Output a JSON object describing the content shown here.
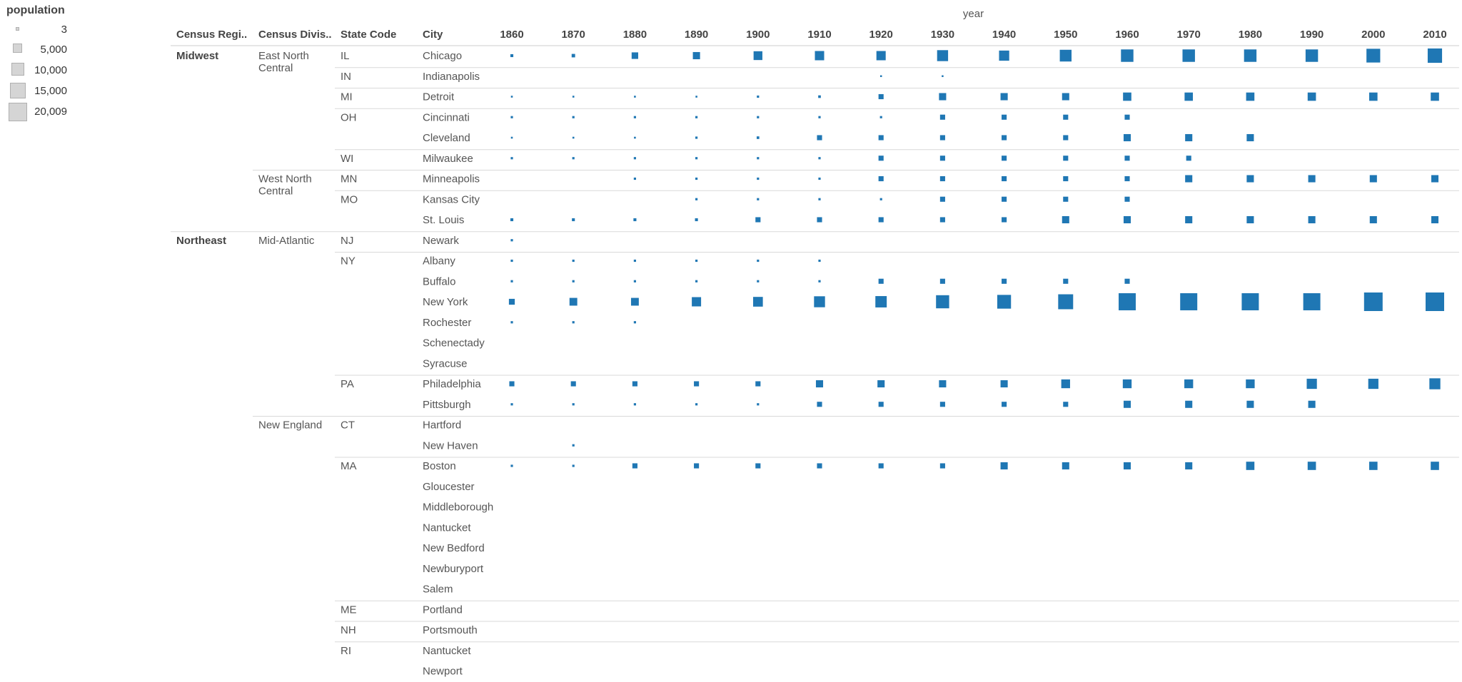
{
  "legend": {
    "title": "population",
    "items": [
      {
        "label": "3",
        "value": 3
      },
      {
        "label": "5,000",
        "value": 5000
      },
      {
        "label": "10,000",
        "value": 10000
      },
      {
        "label": "15,000",
        "value": 15000
      },
      {
        "label": "20,009",
        "value": 20009
      }
    ]
  },
  "chart_data": {
    "type": "table",
    "mark": "square",
    "size_encoding": "population",
    "column_group_title": "year",
    "row_headers": [
      "Census Regi..",
      "Census Divis..",
      "State Code",
      "City"
    ],
    "years": [
      "1860",
      "1870",
      "1880",
      "1890",
      "1900",
      "1910",
      "1920",
      "1930",
      "1940",
      "1950",
      "1960",
      "1970",
      "1980",
      "1990",
      "2000",
      "2010"
    ],
    "mark_color": "#1f77b4",
    "rows": [
      {
        "region": "Midwest",
        "division": "East North Central",
        "state": "IL",
        "city": "Chicago",
        "values": [
          500,
          700,
          2500,
          3000,
          4500,
          5000,
          5000,
          7000,
          6000,
          8000,
          9000,
          9000,
          9000,
          9000,
          11000,
          12000
        ]
      },
      {
        "region": "",
        "division": "",
        "state": "IN",
        "city": "Indianapolis",
        "values": [
          null,
          null,
          null,
          null,
          null,
          null,
          100,
          100,
          null,
          null,
          null,
          null,
          null,
          null,
          null,
          null
        ]
      },
      {
        "region": "",
        "division": "",
        "state": "MI",
        "city": "Detroit",
        "values": [
          200,
          200,
          200,
          200,
          300,
          400,
          1500,
          3000,
          3000,
          3000,
          4000,
          4000,
          4000,
          4000,
          4000,
          4000
        ]
      },
      {
        "region": "",
        "division": "",
        "state": "OH",
        "city": "Cincinnati",
        "values": [
          300,
          300,
          300,
          300,
          300,
          300,
          300,
          1500,
          1500,
          1500,
          1500,
          null,
          null,
          null,
          null,
          null
        ]
      },
      {
        "region": "",
        "division": "",
        "state": "",
        "city": "Cleveland",
        "values": [
          200,
          200,
          200,
          300,
          400,
          1500,
          1500,
          1500,
          1500,
          1500,
          3000,
          3000,
          3000,
          null,
          null,
          null
        ]
      },
      {
        "region": "",
        "division": "",
        "state": "WI",
        "city": "Milwaukee",
        "values": [
          300,
          300,
          300,
          300,
          300,
          300,
          1500,
          1500,
          1500,
          1500,
          1500,
          1500,
          null,
          null,
          null,
          null
        ]
      },
      {
        "region": "",
        "division": "West North Central",
        "state": "MN",
        "city": "Minneapolis",
        "values": [
          null,
          null,
          300,
          300,
          300,
          300,
          1500,
          1500,
          1500,
          1500,
          1500,
          3000,
          3000,
          3000,
          3000,
          3000
        ]
      },
      {
        "region": "",
        "division": "",
        "state": "MO",
        "city": "Kansas City",
        "values": [
          null,
          null,
          null,
          300,
          300,
          300,
          300,
          1500,
          1500,
          1500,
          1500,
          null,
          null,
          null,
          null,
          null
        ]
      },
      {
        "region": "",
        "division": "",
        "state": "",
        "city": "St. Louis",
        "values": [
          500,
          500,
          500,
          500,
          1500,
          1500,
          1500,
          1500,
          1500,
          3000,
          3000,
          3000,
          3000,
          3000,
          3000,
          3000
        ]
      },
      {
        "region": "Northeast",
        "division": "Mid-Atlantic",
        "state": "NJ",
        "city": "Newark",
        "values": [
          300,
          null,
          null,
          null,
          null,
          null,
          null,
          null,
          null,
          null,
          null,
          null,
          null,
          null,
          null,
          null
        ]
      },
      {
        "region": "",
        "division": "",
        "state": "NY",
        "city": "Albany",
        "values": [
          300,
          300,
          300,
          300,
          300,
          300,
          null,
          null,
          null,
          null,
          null,
          null,
          null,
          null,
          null,
          null
        ]
      },
      {
        "region": "",
        "division": "",
        "state": "",
        "city": "Buffalo",
        "values": [
          300,
          300,
          300,
          300,
          300,
          300,
          1500,
          1500,
          1500,
          1500,
          1500,
          null,
          null,
          null,
          null,
          null
        ]
      },
      {
        "region": "",
        "division": "",
        "state": "",
        "city": "New York",
        "values": [
          2000,
          3500,
          3500,
          5000,
          5500,
          7000,
          7500,
          10000,
          11000,
          13000,
          17000,
          17000,
          17000,
          17000,
          20009,
          20009
        ]
      },
      {
        "region": "",
        "division": "",
        "state": "",
        "city": "Rochester",
        "values": [
          300,
          300,
          300,
          null,
          null,
          null,
          null,
          null,
          null,
          null,
          null,
          null,
          null,
          null,
          null,
          null
        ]
      },
      {
        "region": "",
        "division": "",
        "state": "",
        "city": "Schenectady",
        "values": [
          null,
          null,
          null,
          null,
          null,
          null,
          null,
          null,
          null,
          null,
          null,
          null,
          null,
          null,
          null,
          null
        ]
      },
      {
        "region": "",
        "division": "",
        "state": "",
        "city": "Syracuse",
        "values": [
          null,
          null,
          null,
          null,
          null,
          null,
          null,
          null,
          null,
          null,
          null,
          null,
          null,
          null,
          null,
          null
        ]
      },
      {
        "region": "",
        "division": "",
        "state": "PA",
        "city": "Philadelphia",
        "values": [
          1500,
          1500,
          1500,
          1500,
          1500,
          3000,
          3000,
          3000,
          3000,
          4500,
          4500,
          4500,
          4500,
          6000,
          6000,
          7000
        ]
      },
      {
        "region": "",
        "division": "",
        "state": "",
        "city": "Pittsburgh",
        "values": [
          300,
          300,
          300,
          300,
          300,
          1500,
          1500,
          1500,
          1500,
          1500,
          3000,
          3000,
          3000,
          3000,
          null,
          null
        ]
      },
      {
        "region": "",
        "division": "New England",
        "state": "CT",
        "city": "Hartford",
        "values": [
          null,
          null,
          null,
          null,
          null,
          null,
          null,
          null,
          null,
          null,
          null,
          null,
          null,
          null,
          null,
          null
        ]
      },
      {
        "region": "",
        "division": "",
        "state": "",
        "city": "New Haven",
        "values": [
          null,
          300,
          null,
          null,
          null,
          null,
          null,
          null,
          null,
          null,
          null,
          null,
          null,
          null,
          null,
          null
        ]
      },
      {
        "region": "",
        "division": "",
        "state": "MA",
        "city": "Boston",
        "values": [
          300,
          300,
          1500,
          1500,
          1500,
          1500,
          1500,
          1500,
          3000,
          3000,
          3000,
          3000,
          4000,
          4000,
          4000,
          4000
        ]
      },
      {
        "region": "",
        "division": "",
        "state": "",
        "city": "Gloucester",
        "values": [
          null,
          null,
          null,
          null,
          null,
          null,
          null,
          null,
          null,
          null,
          null,
          null,
          null,
          null,
          null,
          null
        ]
      },
      {
        "region": "",
        "division": "",
        "state": "",
        "city": "Middleborough",
        "values": [
          null,
          null,
          null,
          null,
          null,
          null,
          null,
          null,
          null,
          null,
          null,
          null,
          null,
          null,
          null,
          null
        ]
      },
      {
        "region": "",
        "division": "",
        "state": "",
        "city": "Nantucket",
        "values": [
          null,
          null,
          null,
          null,
          null,
          null,
          null,
          null,
          null,
          null,
          null,
          null,
          null,
          null,
          null,
          null
        ]
      },
      {
        "region": "",
        "division": "",
        "state": "",
        "city": "New Bedford",
        "values": [
          null,
          null,
          null,
          null,
          null,
          null,
          null,
          null,
          null,
          null,
          null,
          null,
          null,
          null,
          null,
          null
        ]
      },
      {
        "region": "",
        "division": "",
        "state": "",
        "city": "Newburyport",
        "values": [
          null,
          null,
          null,
          null,
          null,
          null,
          null,
          null,
          null,
          null,
          null,
          null,
          null,
          null,
          null,
          null
        ]
      },
      {
        "region": "",
        "division": "",
        "state": "",
        "city": "Salem",
        "values": [
          null,
          null,
          null,
          null,
          null,
          null,
          null,
          null,
          null,
          null,
          null,
          null,
          null,
          null,
          null,
          null
        ]
      },
      {
        "region": "",
        "division": "",
        "state": "ME",
        "city": "Portland",
        "values": [
          null,
          null,
          null,
          null,
          null,
          null,
          null,
          null,
          null,
          null,
          null,
          null,
          null,
          null,
          null,
          null
        ]
      },
      {
        "region": "",
        "division": "",
        "state": "NH",
        "city": "Portsmouth",
        "values": [
          null,
          null,
          null,
          null,
          null,
          null,
          null,
          null,
          null,
          null,
          null,
          null,
          null,
          null,
          null,
          null
        ]
      },
      {
        "region": "",
        "division": "",
        "state": "RI",
        "city": "Nantucket",
        "values": [
          null,
          null,
          null,
          null,
          null,
          null,
          null,
          null,
          null,
          null,
          null,
          null,
          null,
          null,
          null,
          null
        ]
      },
      {
        "region": "",
        "division": "",
        "state": "",
        "city": "Newport",
        "values": [
          null,
          null,
          null,
          null,
          null,
          null,
          null,
          null,
          null,
          null,
          null,
          null,
          null,
          null,
          null,
          null
        ]
      }
    ]
  }
}
